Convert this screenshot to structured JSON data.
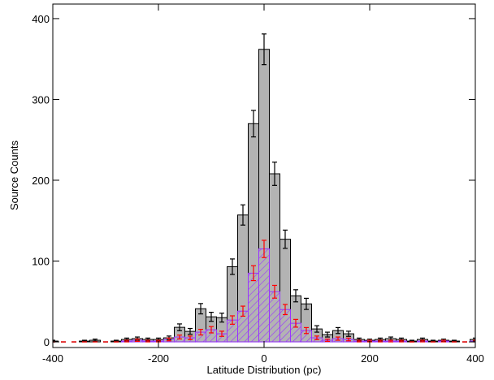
{
  "chart_data": {
    "type": "histogram",
    "xlabel": "Latitude Distribution (pc)",
    "ylabel": "Source Counts",
    "bins": [
      -410,
      -390,
      -370,
      -350,
      -330,
      -310,
      -290,
      -270,
      -250,
      -230,
      -210,
      -190,
      -170,
      -150,
      -130,
      -110,
      -90,
      -70,
      -50,
      -30,
      -10,
      10,
      30,
      50,
      70,
      90,
      110,
      130,
      150,
      170,
      190,
      210,
      230,
      250,
      270,
      290,
      310,
      330,
      350,
      370,
      390,
      410
    ],
    "series": [
      {
        "color": "#b3b3b3",
        "edge": "#000000",
        "error_color": "#000000",
        "hatch": false,
        "values": [
          1,
          0,
          0,
          1,
          2,
          0,
          1,
          3,
          4,
          3,
          3,
          5,
          18,
          13,
          41,
          31,
          30,
          93,
          157,
          270,
          362,
          208,
          127,
          57,
          47,
          16,
          9,
          14,
          10,
          3,
          2,
          3,
          4,
          3,
          1,
          3,
          1,
          2,
          1,
          0,
          3
        ],
        "errors": [
          1,
          0,
          0,
          1,
          1.4,
          0,
          1,
          1.7,
          2,
          1.7,
          1.7,
          2.2,
          4.2,
          3.6,
          6.4,
          5.6,
          5.5,
          9.6,
          12.5,
          16.4,
          19,
          14.4,
          11.3,
          7.5,
          6.9,
          4,
          3,
          3.7,
          3.2,
          1.7,
          1.4,
          1.7,
          2,
          1.7,
          1,
          1.7,
          1,
          1.4,
          1,
          0,
          1.7
        ]
      },
      {
        "color": "#9933ff",
        "edge": "#9933ff",
        "error_color": "#ff0000",
        "hatch": true,
        "values": [
          0,
          0,
          0,
          0,
          0,
          0,
          0,
          1,
          2,
          1,
          1,
          3,
          6,
          5,
          12,
          15,
          10,
          27,
          38,
          85,
          115,
          62,
          40,
          23,
          14,
          5,
          2,
          4,
          3,
          1,
          1,
          1,
          1,
          1,
          0,
          1,
          0,
          1,
          0,
          0,
          1
        ],
        "errors": [
          0,
          0,
          0,
          0,
          0,
          0,
          0,
          1,
          1.4,
          1,
          1,
          1.7,
          2.4,
          2.2,
          3.5,
          3.9,
          3.2,
          5.2,
          6.2,
          9.2,
          10.7,
          7.9,
          6.3,
          4.8,
          3.7,
          2.2,
          1.4,
          2,
          1.7,
          1,
          1,
          1,
          1,
          1,
          0,
          1,
          0,
          1,
          0,
          0,
          1
        ]
      }
    ],
    "xlim": [
      -400,
      400
    ],
    "xticks": [
      -400,
      -200,
      0,
      200,
      400
    ],
    "ylim": [
      -7,
      418
    ],
    "yticks": [
      0,
      100,
      200,
      300,
      400
    ]
  }
}
